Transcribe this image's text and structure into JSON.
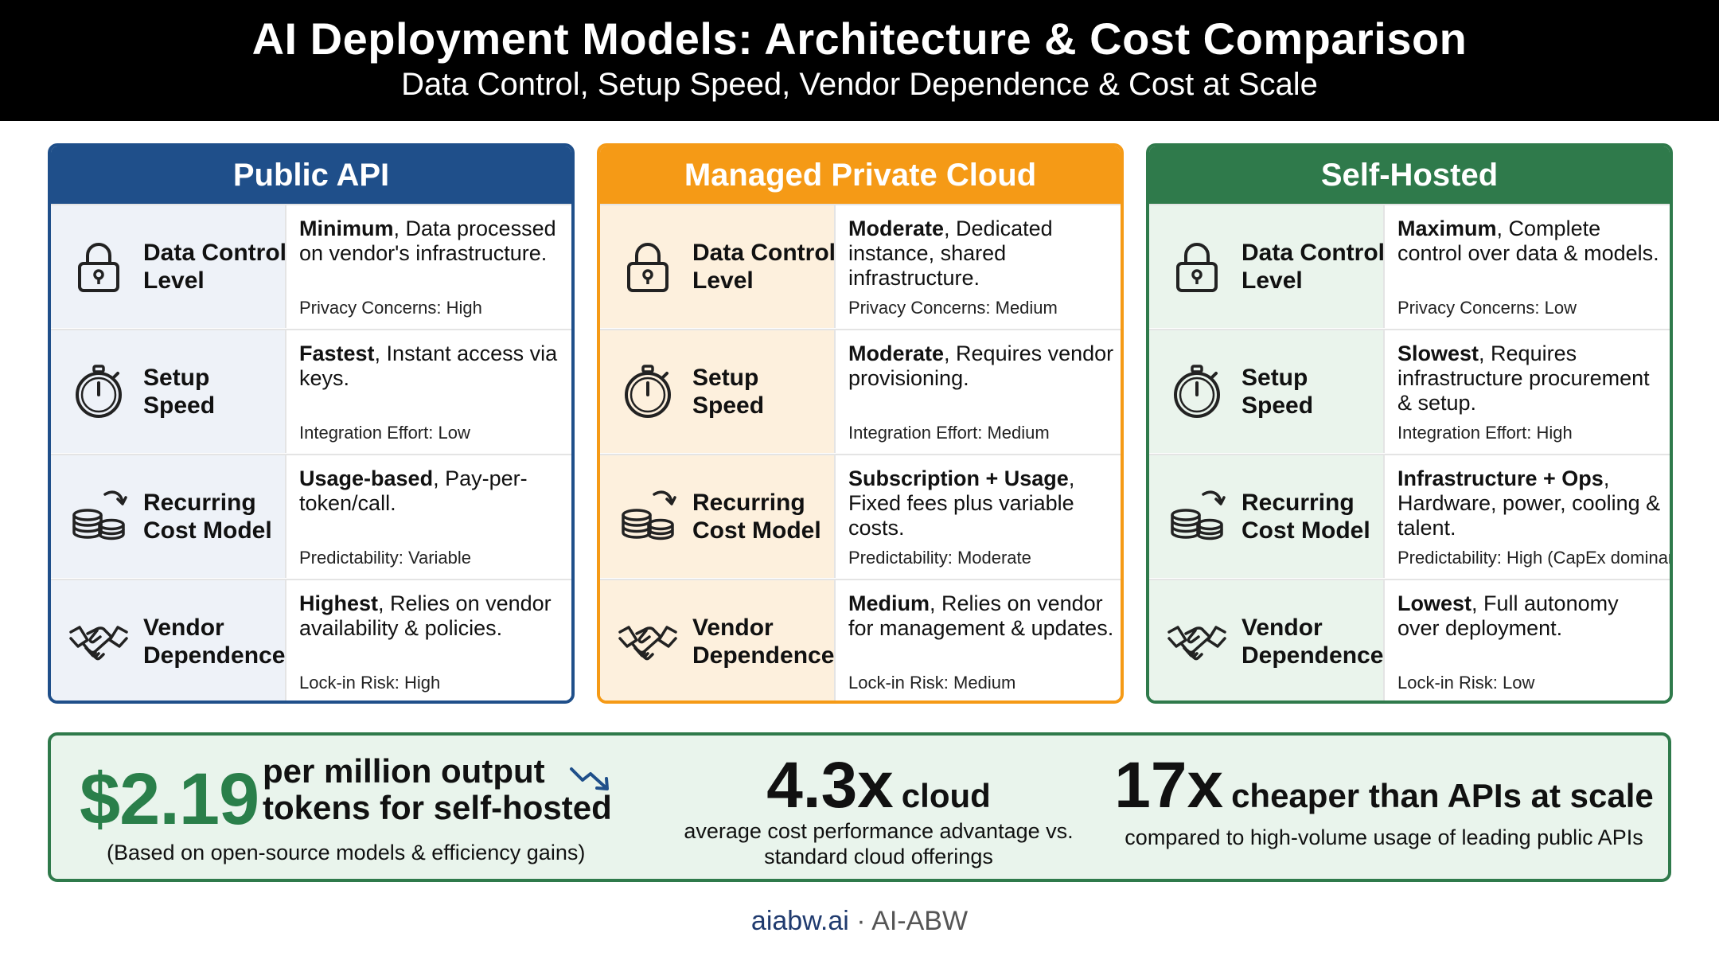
{
  "header": {
    "title": "AI Deployment Models: Architecture & Cost Comparison",
    "subtitle": "Data Control, Setup Speed, Vendor Dependence & Cost at Scale"
  },
  "colors": {
    "public_api": "#1f4f8a",
    "public_api_bg": "#eef2f8",
    "managed_private_cloud": "#f59a16",
    "managed_private_cloud_bg": "#fdf0dd",
    "self_hosted": "#2f7a4b",
    "self_hosted_bg": "#eaf4ec",
    "stats_bg": "#e9f4ec",
    "stats_accent": "#2a7f4a"
  },
  "columns": [
    {
      "title": "Public API",
      "rows": [
        {
          "icon": "lock-icon",
          "label": "Data Control Level",
          "lead": "Minimum",
          "desc": ", Data processed on vendor's infrastructure.",
          "meta": "Privacy Concerns: High"
        },
        {
          "icon": "stopwatch-icon",
          "label": "Setup Speed",
          "lead": "Fastest",
          "desc": ", Instant access via keys.",
          "meta": "Integration Effort: Low"
        },
        {
          "icon": "coins-icon",
          "label": "Recurring Cost Model",
          "lead": "Usage-based",
          "desc": ", Pay-per-token/call.",
          "meta": "Predictability: Variable"
        },
        {
          "icon": "handshake-icon",
          "label": "Vendor Dependence",
          "lead": "Highest",
          "desc": ", Relies on vendor availability & policies.",
          "meta": "Lock-in Risk: High"
        }
      ]
    },
    {
      "title": "Managed Private Cloud",
      "rows": [
        {
          "icon": "lock-icon",
          "label": "Data Control Level",
          "lead": "Moderate",
          "desc": ", Dedicated instance, shared infrastructure.",
          "meta": "Privacy Concerns: Medium"
        },
        {
          "icon": "stopwatch-icon",
          "label": "Setup Speed",
          "lead": "Moderate",
          "desc": ", Requires vendor provisioning.",
          "meta": "Integration Effort: Medium"
        },
        {
          "icon": "coins-icon",
          "label": "Recurring Cost Model",
          "lead": "Subscription + Usage",
          "desc": ", Fixed fees plus variable costs.",
          "meta": "Predictability: Moderate"
        },
        {
          "icon": "handshake-icon",
          "label": "Vendor Dependence",
          "lead": "Medium",
          "desc": ", Relies on vendor for management & updates.",
          "meta": "Lock-in Risk: Medium"
        }
      ]
    },
    {
      "title": "Self-Hosted",
      "rows": [
        {
          "icon": "lock-icon",
          "label": "Data Control Level",
          "lead": "Maximum",
          "desc": ", Complete control over data & models.",
          "meta": "Privacy Concerns: Low"
        },
        {
          "icon": "stopwatch-icon",
          "label": "Setup Speed",
          "lead": "Slowest",
          "desc": ", Requires infrastructure procurement & setup.",
          "meta": "Integration Effort: High"
        },
        {
          "icon": "coins-icon",
          "label": "Recurring Cost Model",
          "lead": "Infrastructure + Ops",
          "desc": ", Hardware, power, cooling & talent.",
          "meta": "Predictability: High (CapEx dominant)"
        },
        {
          "icon": "handshake-icon",
          "label": "Vendor Dependence",
          "lead": "Lowest",
          "desc": ", Full autonomy over deployment.",
          "meta": "Lock-in Risk: Low"
        }
      ]
    }
  ],
  "stats": [
    {
      "big": "$2.19",
      "text": "per million output tokens for self-hosted",
      "note": "(Based on open-source models & efficiency gains)",
      "icon": "trend-down-icon"
    },
    {
      "big": "4.3x",
      "unit": "cloud",
      "note": "average cost performance advantage vs. standard cloud offerings"
    },
    {
      "big": "17x",
      "unit": "cheaper than APIs at scale",
      "note": "compared to high-volume usage of leading public APIs"
    }
  ],
  "footer": {
    "domain": "aiabw.ai",
    "separator": "·",
    "brand": "AI-ABW"
  }
}
